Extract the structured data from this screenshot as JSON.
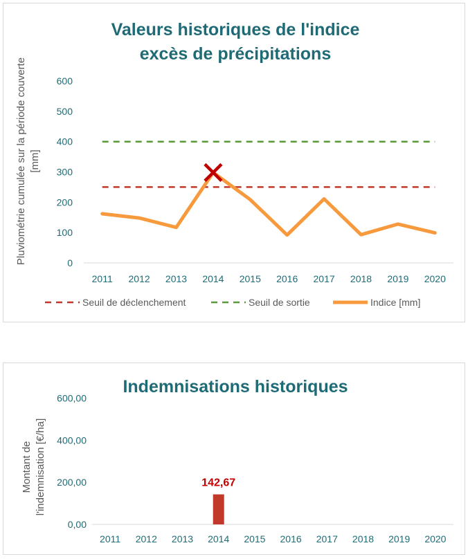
{
  "chart_data": [
    {
      "type": "line",
      "title_lines": [
        "Valeurs historiques de l'indice",
        "excès de précipitations"
      ],
      "ylabel_lines": [
        "Pluviométrie cumulée sur la période couverte",
        "[mm]"
      ],
      "xlabel": "",
      "categories": [
        "2011",
        "2012",
        "2013",
        "2014",
        "2015",
        "2016",
        "2017",
        "2018",
        "2019",
        "2020"
      ],
      "ylim": [
        0,
        600
      ],
      "yticks": [
        "0",
        "100",
        "200",
        "300",
        "400",
        "500",
        "600"
      ],
      "grid": false,
      "legend_position": "bottom",
      "series": [
        {
          "name": "Seuil de déclenchement",
          "values": [
            250,
            250,
            250,
            250,
            250,
            250,
            250,
            250,
            250,
            250
          ],
          "color": "#c0392b",
          "style": "dashed"
        },
        {
          "name": "Seuil de sortie",
          "values": [
            400,
            400,
            400,
            400,
            400,
            400,
            400,
            400,
            400,
            400
          ],
          "color": "#5a9a3a",
          "style": "dashed"
        },
        {
          "name": "Indice [mm]",
          "values": [
            162,
            148,
            117,
            298,
            209,
            92,
            211,
            93,
            128,
            99
          ],
          "color": "#f79a3e",
          "style": "solid"
        }
      ],
      "marker": {
        "category": "2014",
        "value": 298,
        "symbol": "x",
        "color": "#c00000"
      }
    },
    {
      "type": "bar",
      "title": "Indemnisations historiques",
      "ylabel_lines": [
        "Montant de",
        "l'indemnisation [€/ha]"
      ],
      "xlabel": "",
      "categories": [
        "2011",
        "2012",
        "2013",
        "2014",
        "2015",
        "2016",
        "2017",
        "2018",
        "2019",
        "2020"
      ],
      "values": [
        0,
        0,
        0,
        142.67,
        0,
        0,
        0,
        0,
        0,
        0
      ],
      "ylim": [
        0,
        700
      ],
      "yticks": [
        "0,00",
        "200,00",
        "400,00",
        "600,00"
      ],
      "grid": false,
      "bar_color": "#c0392b",
      "data_labels": [
        {
          "category": "2014",
          "text": "142,67",
          "color": "#c00000"
        }
      ]
    }
  ]
}
